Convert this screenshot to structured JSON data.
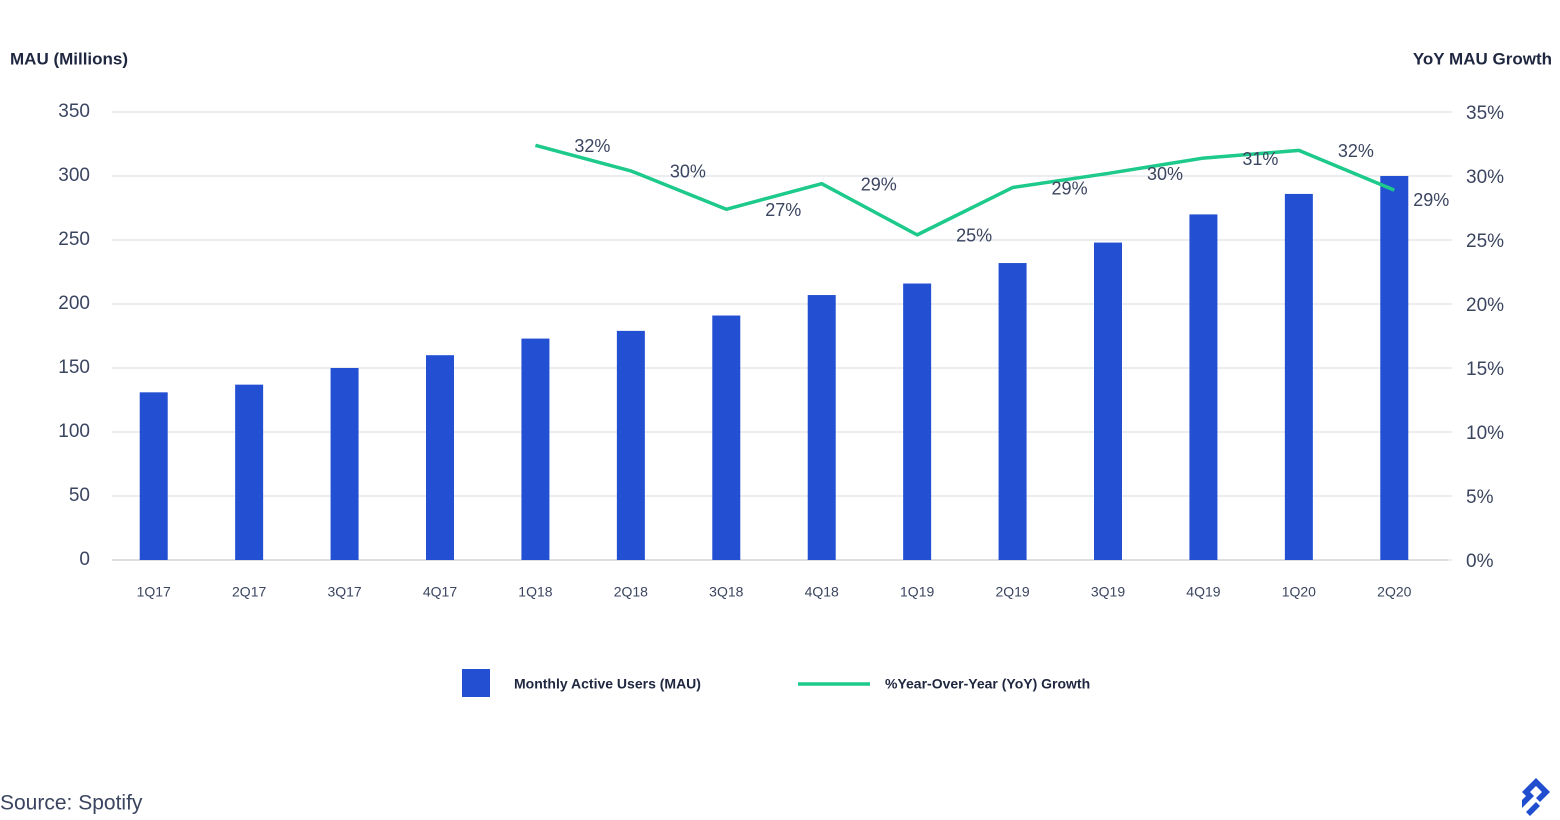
{
  "chart_data": {
    "type": "bar-line",
    "y_label": "MAU (Millions)",
    "y2_label": "YoY MAU Growth",
    "categories": [
      "1Q17",
      "2Q17",
      "3Q17",
      "4Q17",
      "1Q18",
      "2Q18",
      "3Q18",
      "4Q18",
      "1Q19",
      "2Q19",
      "3Q19",
      "4Q19",
      "1Q20",
      "2Q20"
    ],
    "series": [
      {
        "name": "Monthly Active Users (MAU)",
        "type": "bar",
        "color": "#2350d3",
        "axis": "y",
        "values": [
          131,
          137,
          150,
          160,
          173,
          179,
          191,
          207,
          216,
          232,
          248,
          270,
          286,
          300
        ]
      },
      {
        "name": "%Year-Over-Year (YoY) Growth",
        "type": "line",
        "color": "#1dc98b",
        "axis": "y2",
        "values": [
          null,
          null,
          null,
          null,
          32.4,
          30.4,
          27.4,
          29.4,
          25.4,
          29.1,
          30.2,
          31.4,
          32.0,
          28.9
        ],
        "value_labels": [
          null,
          null,
          null,
          null,
          "32%",
          "30%",
          "27%",
          "29%",
          "25%",
          "29%",
          "30%",
          "31%",
          "32%",
          "29%"
        ]
      }
    ],
    "ylim": [
      0,
      350
    ],
    "yticks": [
      0,
      50,
      100,
      150,
      200,
      250,
      300,
      350
    ],
    "y2lim": [
      0,
      35
    ],
    "y2ticks": [
      {
        "value": 0,
        "label": "0%"
      },
      {
        "value": 5,
        "label": "5%"
      },
      {
        "value": 10,
        "label": "10%"
      },
      {
        "value": 15,
        "label": "15%"
      },
      {
        "value": 20,
        "label": "20%"
      },
      {
        "value": 25,
        "label": "25%"
      },
      {
        "value": 30,
        "label": "30%"
      },
      {
        "value": 35,
        "label": "35%"
      }
    ],
    "grid": true,
    "legend": "bottom",
    "source": "Source: Spotify"
  }
}
